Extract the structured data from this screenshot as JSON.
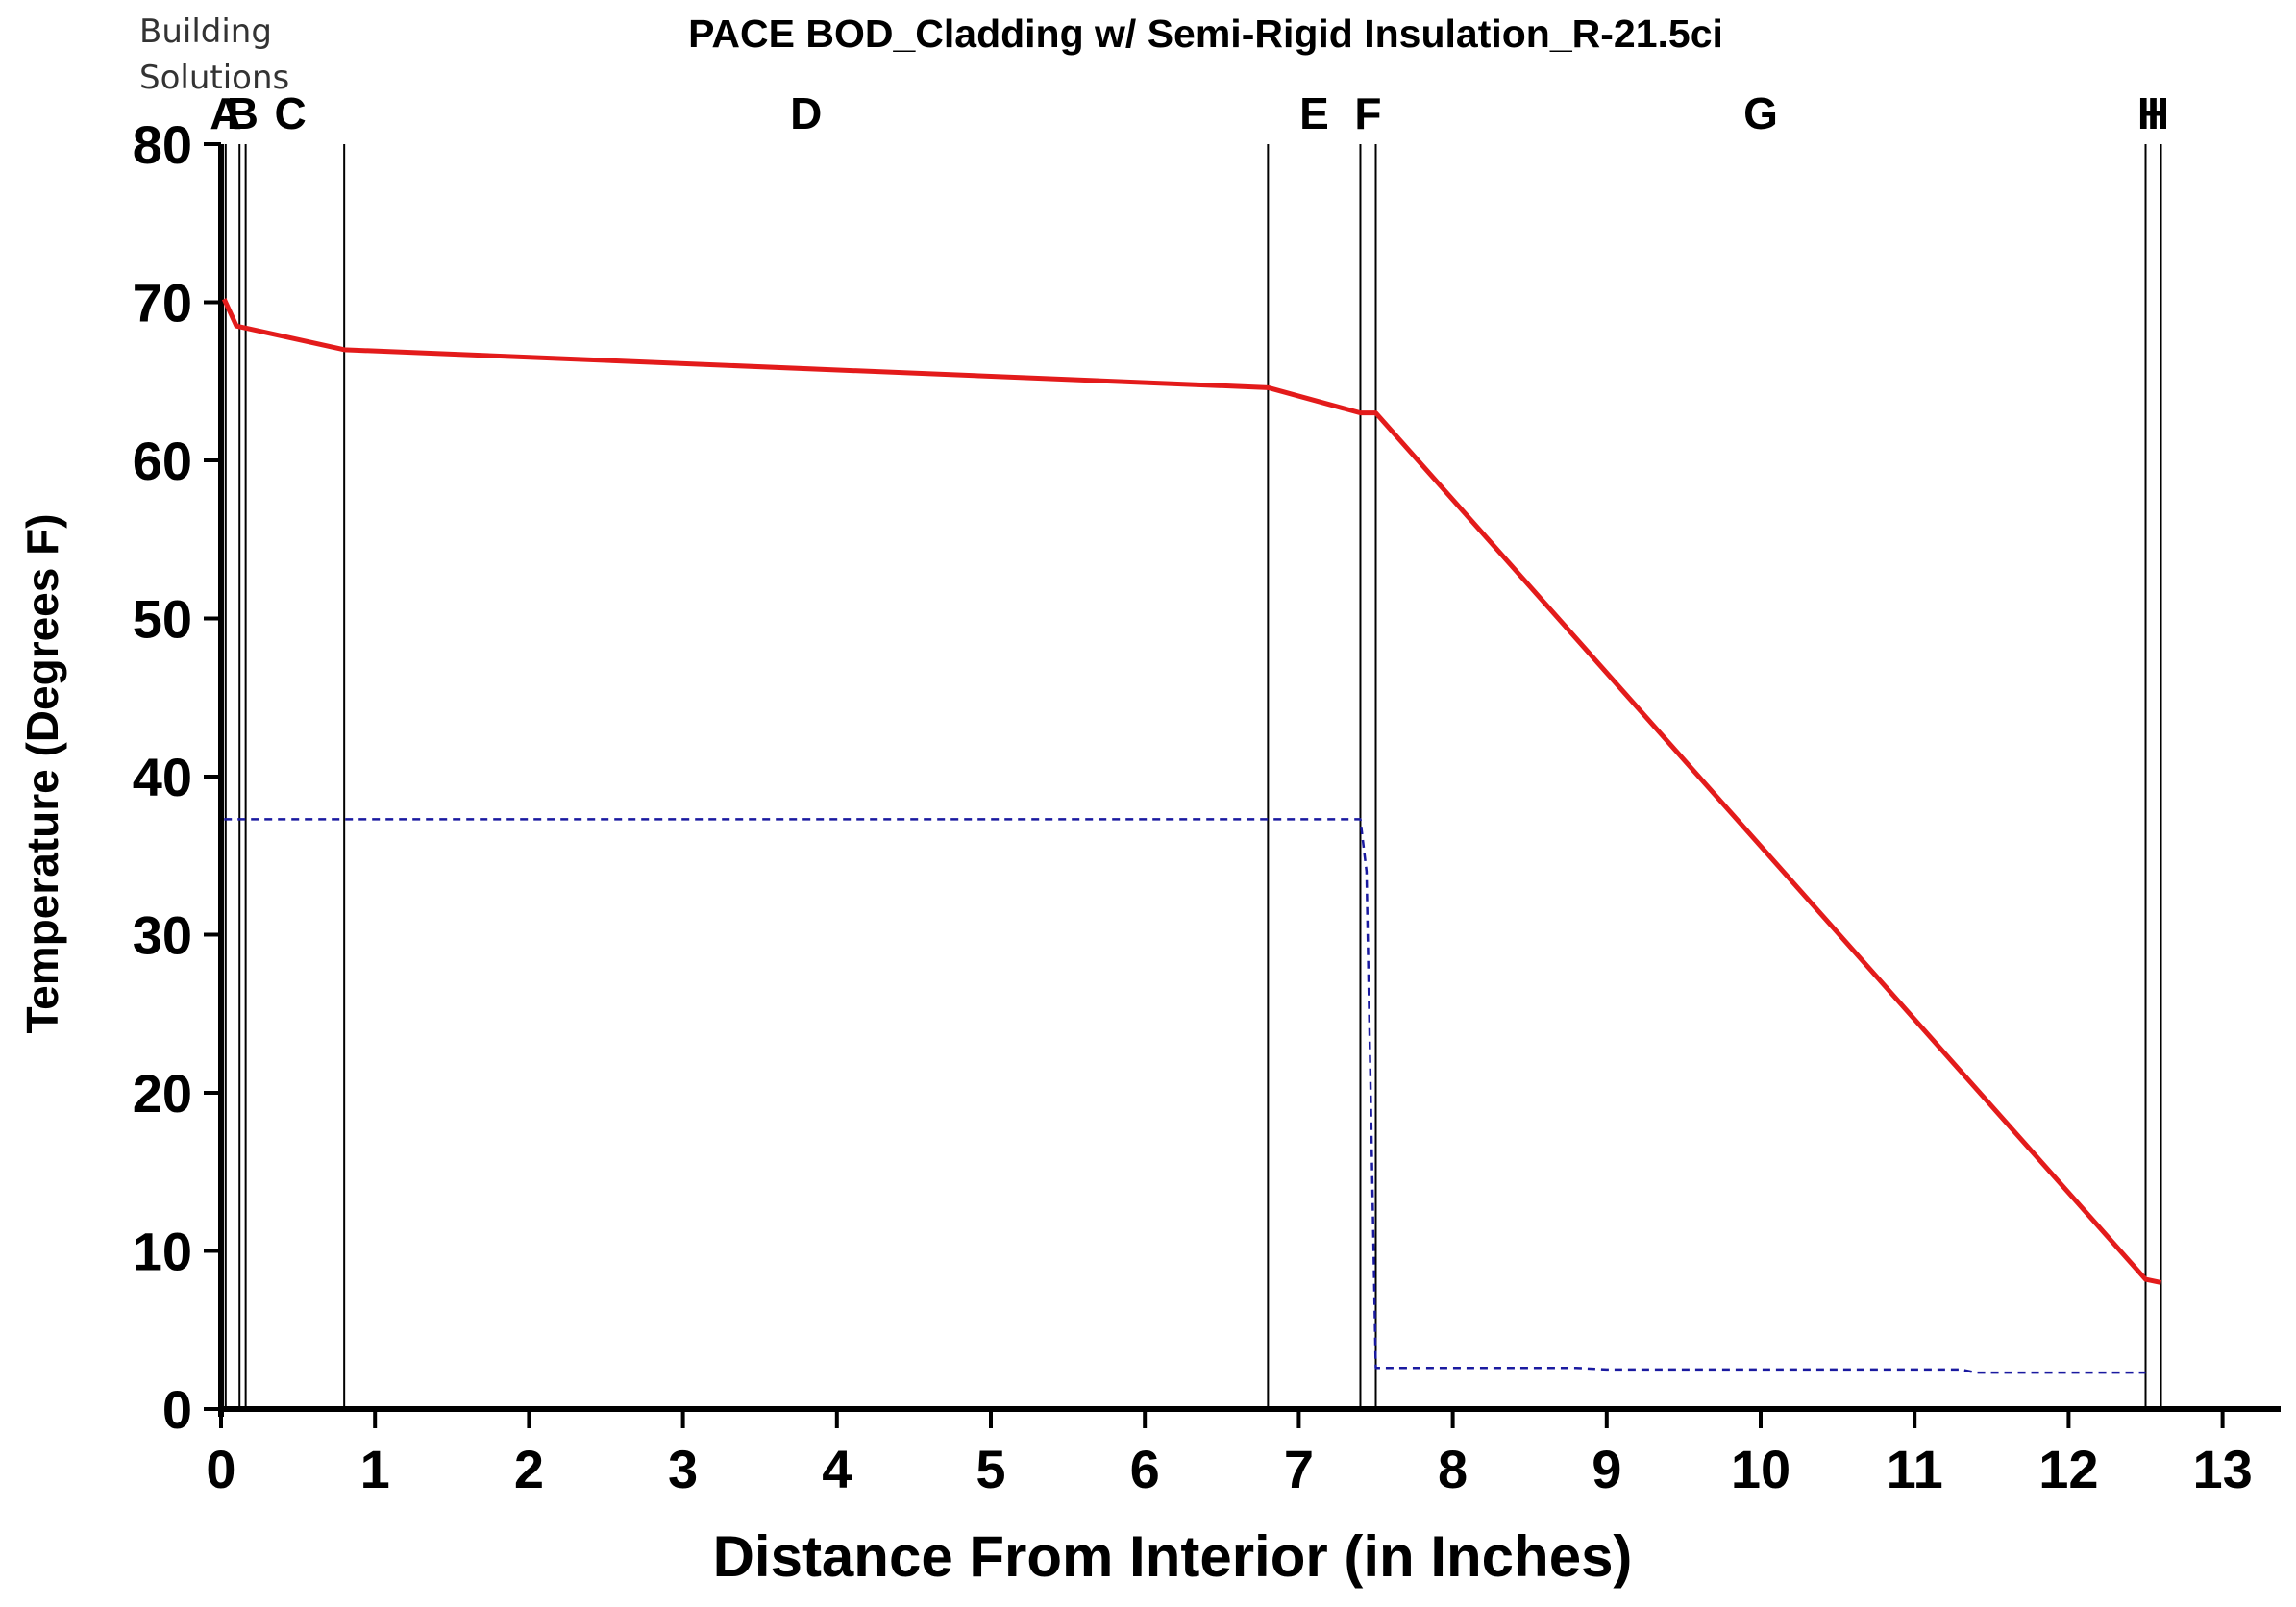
{
  "brand": {
    "line1": "Building",
    "line2": "Solutions"
  },
  "chart_data": {
    "type": "line",
    "title": "PACE BOD_Cladding w/ Semi-Rigid Insulation_R-21.5ci",
    "xlabel": "Distance From Interior (in Inches)",
    "ylabel": "Temperature (Degrees F)",
    "xlim": [
      0,
      13.4
    ],
    "ylim": [
      0,
      80
    ],
    "xticks": [
      0,
      1,
      2,
      3,
      4,
      5,
      6,
      7,
      8,
      9,
      10,
      11,
      12,
      13
    ],
    "yticks": [
      0,
      10,
      20,
      30,
      40,
      50,
      60,
      70,
      80
    ],
    "grid": false,
    "layers": [
      {
        "label": "A",
        "x": 0.0
      },
      {
        "label": "B",
        "x": 0.12
      },
      {
        "label": "C",
        "x": 0.8
      },
      {
        "label": "D",
        "x": 6.8
      },
      {
        "label": "E",
        "x": 7.4
      },
      {
        "label": "F",
        "x": 7.5
      },
      {
        "label": "G",
        "x": 12.5
      },
      {
        "label": "H",
        "x": 12.6
      },
      {
        "label": "I",
        "x": 12.6
      }
    ],
    "boundaries": [
      0.0,
      0.03,
      0.12,
      0.16,
      0.8,
      6.8,
      7.4,
      7.5,
      12.5,
      12.6
    ],
    "series": [
      {
        "role": "temperature",
        "color": "#e31b1b",
        "style": "solid",
        "points": [
          [
            0.02,
            70.2
          ],
          [
            0.1,
            68.5
          ],
          [
            0.8,
            67.0
          ],
          [
            6.8,
            64.6
          ],
          [
            7.4,
            63.0
          ],
          [
            7.5,
            63.0
          ],
          [
            12.5,
            8.2
          ],
          [
            12.6,
            8.0
          ]
        ]
      },
      {
        "role": "dew-point",
        "color": "#1a1aa0",
        "style": "dashed",
        "points": [
          [
            0.02,
            37.3
          ],
          [
            0.8,
            37.3
          ],
          [
            6.8,
            37.3
          ],
          [
            7.4,
            37.3
          ],
          [
            7.44,
            34.0
          ],
          [
            7.5,
            2.6
          ],
          [
            8.8,
            2.6
          ],
          [
            9.0,
            2.5
          ],
          [
            11.3,
            2.5
          ],
          [
            11.4,
            2.3
          ],
          [
            12.5,
            2.3
          ]
        ]
      }
    ]
  }
}
